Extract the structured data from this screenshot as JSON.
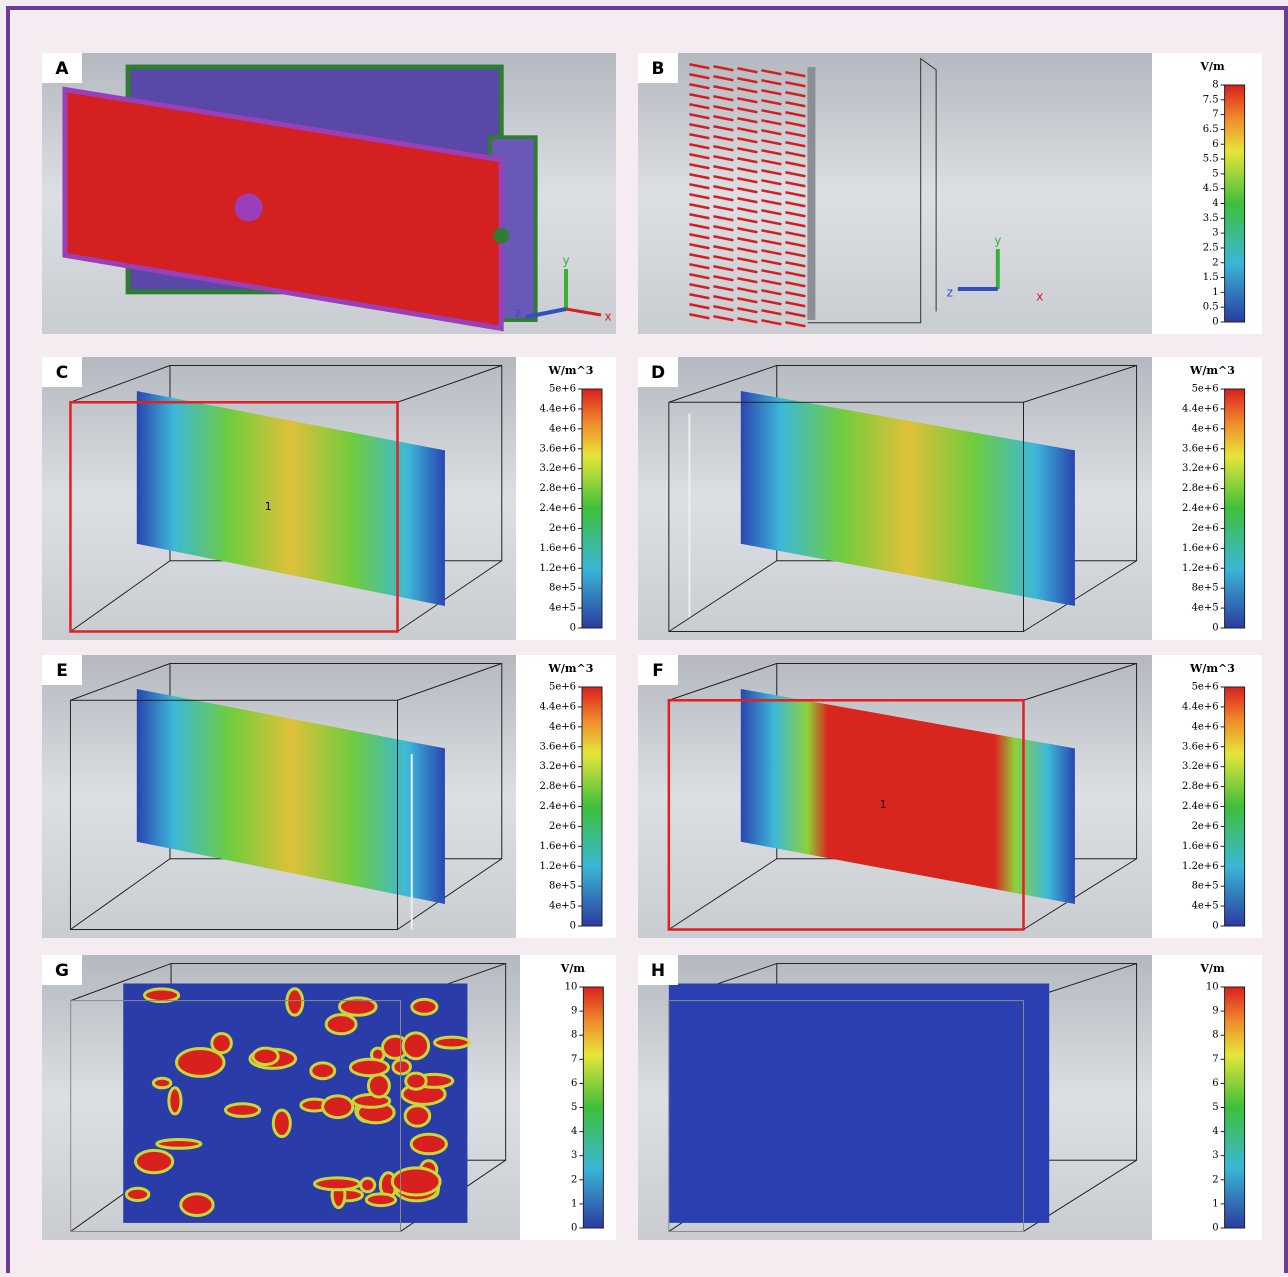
{
  "panels": [
    {
      "label": "A",
      "axes": [
        "y",
        "z",
        "x"
      ]
    },
    {
      "label": "B",
      "axes": [
        "y",
        "z",
        "x"
      ],
      "colorbar": {
        "unit": "V/m",
        "ticks": [
          "8",
          "7.5",
          "7",
          "6.5",
          "6",
          "5.5",
          "5",
          "4.5",
          "4",
          "3.5",
          "3",
          "2.5",
          "2",
          "1.5",
          "1",
          "0.5",
          "0"
        ]
      }
    },
    {
      "label": "C",
      "marker": "1",
      "colorbar": {
        "unit": "W/m^3",
        "ticks": [
          "5e+6",
          "4.4e+6",
          "4e+6",
          "3.6e+6",
          "3.2e+6",
          "2.8e+6",
          "2.4e+6",
          "2e+6",
          "1.6e+6",
          "1.2e+6",
          "8e+5",
          "4e+5",
          "0"
        ]
      }
    },
    {
      "label": "D",
      "colorbar": {
        "unit": "W/m^3",
        "ticks": [
          "5e+6",
          "4.4e+6",
          "4e+6",
          "3.6e+6",
          "3.2e+6",
          "2.8e+6",
          "2.4e+6",
          "2e+6",
          "1.6e+6",
          "1.2e+6",
          "8e+5",
          "4e+5",
          "0"
        ]
      }
    },
    {
      "label": "E",
      "colorbar": {
        "unit": "W/m^3",
        "ticks": [
          "5e+6",
          "4.4e+6",
          "4e+6",
          "3.6e+6",
          "3.2e+6",
          "2.8e+6",
          "2.4e+6",
          "2e+6",
          "1.6e+6",
          "1.2e+6",
          "8e+5",
          "4e+5",
          "0"
        ]
      }
    },
    {
      "label": "F",
      "marker": "1",
      "colorbar": {
        "unit": "W/m^3",
        "ticks": [
          "5e+6",
          "4.4e+6",
          "4e+6",
          "3.6e+6",
          "3.2e+6",
          "2.8e+6",
          "2.4e+6",
          "2e+6",
          "1.6e+6",
          "1.2e+6",
          "8e+5",
          "4e+5",
          "0"
        ]
      }
    },
    {
      "label": "G",
      "colorbar": {
        "unit": "V/m",
        "ticks": [
          "10",
          "9",
          "8",
          "7",
          "6",
          "5",
          "4",
          "3",
          "2",
          "1",
          "0"
        ]
      }
    },
    {
      "label": "H",
      "colorbar": {
        "unit": "V/m",
        "ticks": [
          "10",
          "9",
          "8",
          "7",
          "6",
          "5",
          "4",
          "3",
          "2",
          "1",
          "0"
        ]
      }
    }
  ]
}
